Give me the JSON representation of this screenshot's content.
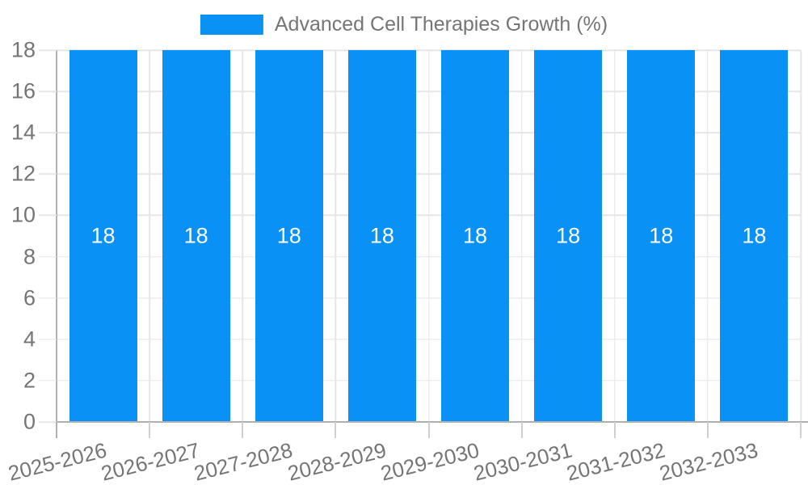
{
  "legend": {
    "label": "Advanced Cell Therapies Growth (%)"
  },
  "colors": {
    "bar": "#0A91F5",
    "bar_value_label": "#FFFFFF",
    "grid": "#E6E6E6",
    "axis": "#B0B0B0",
    "tick": "#CFCFCF",
    "text": "#757575"
  },
  "chart_data": {
    "type": "bar",
    "title": "",
    "xlabel": "",
    "ylabel": "",
    "categories": [
      "2025-2026",
      "2026-2027",
      "2027-2028",
      "2028-2029",
      "2029-2030",
      "2030-2031",
      "2031-2032",
      "2032-2033"
    ],
    "series": [
      {
        "name": "Advanced Cell Therapies Growth (%)",
        "values": [
          18,
          18,
          18,
          18,
          18,
          18,
          18,
          18
        ]
      }
    ],
    "bar_value_labels": [
      "18",
      "18",
      "18",
      "18",
      "18",
      "18",
      "18",
      "18"
    ],
    "ylim": [
      0,
      18
    ],
    "yticks": [
      0,
      2,
      4,
      6,
      8,
      10,
      12,
      14,
      16,
      18
    ],
    "grid": true,
    "legend_position": "top",
    "x_label_rotation_deg": -14
  }
}
